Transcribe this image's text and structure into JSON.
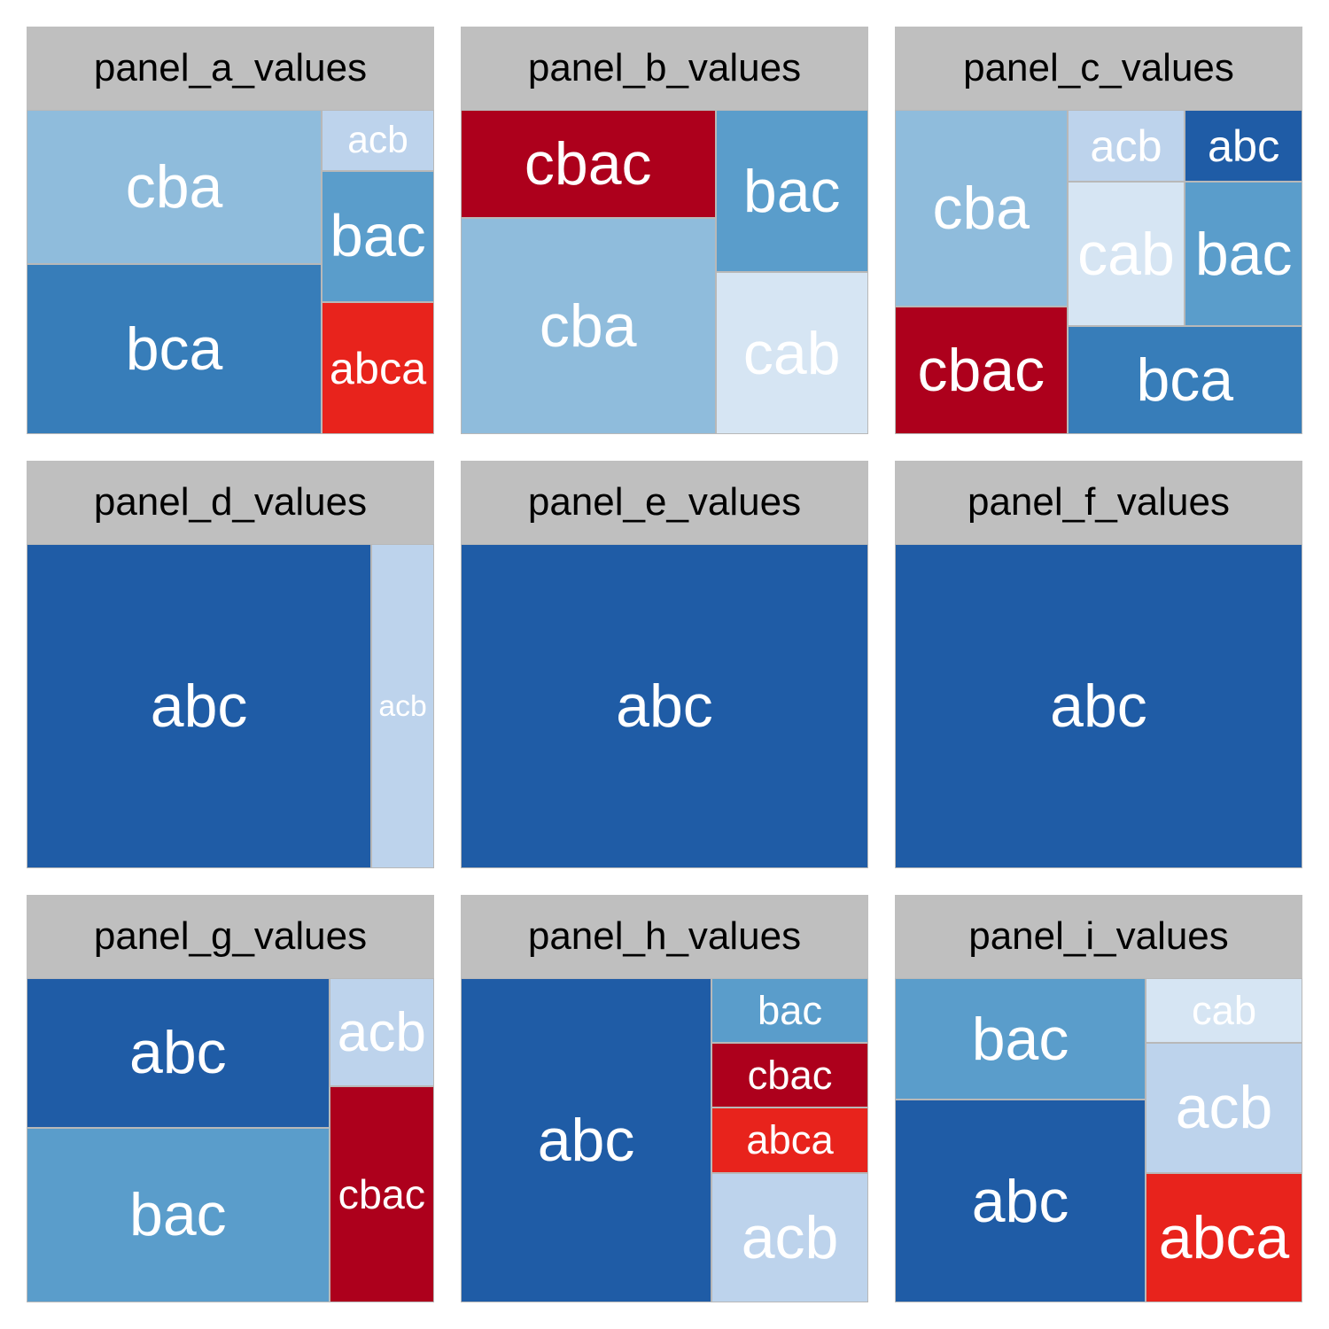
{
  "chart_data": {
    "type": "treemap",
    "colors": {
      "abc": "#1f5ca6",
      "acb": "#bdd3ec",
      "bac": "#5a9dcb",
      "bca": "#377db9",
      "cab": "#d6e5f3",
      "cba": "#8fbcdc",
      "abca": "#e8231c",
      "cbac": "#ad001c"
    },
    "panels": [
      {
        "title": "panel_a_values",
        "items": [
          {
            "label": "cba",
            "value": 2.0
          },
          {
            "label": "bca",
            "value": 2.2
          },
          {
            "label": "acb",
            "value": 0.3
          },
          {
            "label": "bac",
            "value": 0.65
          },
          {
            "label": "abca",
            "value": 0.65
          }
        ]
      },
      {
        "title": "panel_b_values",
        "items": [
          {
            "label": "cbac",
            "value": 1.0
          },
          {
            "label": "cba",
            "value": 2.0
          },
          {
            "label": "bac",
            "value": 0.9
          },
          {
            "label": "cab",
            "value": 0.9
          }
        ]
      },
      {
        "title": "panel_c_values",
        "items": [
          {
            "label": "cba",
            "value": 1.0
          },
          {
            "label": "cbac",
            "value": 0.65
          },
          {
            "label": "acb",
            "value": 0.25
          },
          {
            "label": "abc",
            "value": 0.25
          },
          {
            "label": "cab",
            "value": 0.5
          },
          {
            "label": "bac",
            "value": 0.5
          },
          {
            "label": "bca",
            "value": 0.75
          }
        ]
      },
      {
        "title": "panel_d_values",
        "items": [
          {
            "label": "abc",
            "value": 5.5
          },
          {
            "label": "acb",
            "value": 1.0
          }
        ]
      },
      {
        "title": "panel_e_values",
        "items": [
          {
            "label": "abc",
            "value": 1.0
          }
        ]
      },
      {
        "title": "panel_f_values",
        "items": [
          {
            "label": "abc",
            "value": 1.0
          }
        ]
      },
      {
        "title": "panel_g_values",
        "items": [
          {
            "label": "abc",
            "value": 3.0
          },
          {
            "label": "bac",
            "value": 3.5
          },
          {
            "label": "acb",
            "value": 0.75
          },
          {
            "label": "cbac",
            "value": 1.5
          }
        ]
      },
      {
        "title": "panel_h_values",
        "items": [
          {
            "label": "abc",
            "value": 8.0
          },
          {
            "label": "bac",
            "value": 1.0
          },
          {
            "label": "cbac",
            "value": 1.0
          },
          {
            "label": "abca",
            "value": 1.0
          },
          {
            "label": "acb",
            "value": 2.0
          }
        ]
      },
      {
        "title": "panel_i_values",
        "items": [
          {
            "label": "bac",
            "value": 3.0
          },
          {
            "label": "abc",
            "value": 5.0
          },
          {
            "label": "cab",
            "value": 1.0
          },
          {
            "label": "acb",
            "value": 2.0
          },
          {
            "label": "abca",
            "value": 2.0
          }
        ]
      }
    ]
  }
}
